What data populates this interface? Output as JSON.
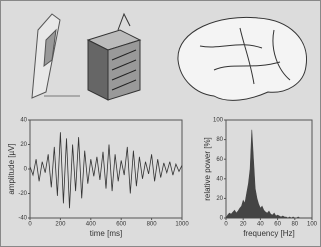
{
  "chart_data": [
    {
      "type": "line",
      "xlabel": "time [ms]",
      "ylabel": "amplitude [µV]",
      "x": [
        0,
        20,
        40,
        60,
        80,
        100,
        120,
        140,
        160,
        180,
        200,
        220,
        240,
        260,
        280,
        300,
        320,
        340,
        360,
        380,
        400,
        420,
        440,
        460,
        480,
        500,
        520,
        540,
        560,
        580,
        600,
        620,
        640,
        660,
        680,
        700,
        720,
        740,
        760,
        780,
        800,
        820,
        840,
        860,
        880,
        900,
        920,
        940,
        960,
        980,
        1000
      ],
      "values": [
        2,
        -5,
        8,
        -10,
        6,
        -3,
        12,
        -15,
        18,
        -22,
        30,
        -28,
        25,
        -32,
        20,
        -18,
        26,
        -24,
        15,
        -12,
        8,
        -6,
        10,
        -9,
        14,
        -16,
        20,
        -18,
        12,
        -10,
        7,
        -5,
        18,
        -20,
        15,
        -14,
        10,
        -8,
        6,
        -4,
        12,
        -10,
        8,
        -7,
        5,
        -3,
        6,
        -5,
        4,
        -2,
        3
      ],
      "xlim": [
        0,
        1000
      ],
      "ylim": [
        -40,
        40
      ],
      "xticks": [
        0,
        200,
        400,
        600,
        800,
        1000
      ],
      "yticks": [
        -40,
        -20,
        0,
        20,
        40
      ],
      "color": "#333333"
    },
    {
      "type": "area",
      "xlabel": "frequency [Hz]",
      "ylabel": "relative power [%]",
      "x": [
        0,
        2,
        4,
        6,
        8,
        10,
        12,
        14,
        16,
        18,
        20,
        22,
        24,
        26,
        28,
        30,
        32,
        34,
        36,
        38,
        40,
        42,
        44,
        46,
        48,
        50,
        52,
        54,
        56,
        58,
        60,
        62,
        64,
        66,
        68,
        70,
        72,
        74,
        76,
        78,
        80,
        82,
        84,
        86,
        88,
        90,
        92,
        94,
        96,
        98,
        100
      ],
      "values": [
        0,
        3,
        5,
        4,
        6,
        8,
        5,
        7,
        10,
        12,
        18,
        15,
        25,
        35,
        50,
        90,
        60,
        30,
        20,
        14,
        10,
        12,
        8,
        6,
        5,
        7,
        4,
        3,
        5,
        2,
        3,
        2,
        1,
        2,
        1,
        1,
        0,
        1,
        0,
        1,
        0,
        0,
        1,
        0,
        0,
        0,
        0,
        0,
        0,
        0,
        0
      ],
      "xlim": [
        0,
        100
      ],
      "ylim": [
        0,
        100
      ],
      "xticks": [
        0,
        20,
        40,
        60,
        80,
        100
      ],
      "yticks": [
        0,
        20,
        40,
        60,
        80,
        100
      ],
      "color": "#444444"
    }
  ]
}
